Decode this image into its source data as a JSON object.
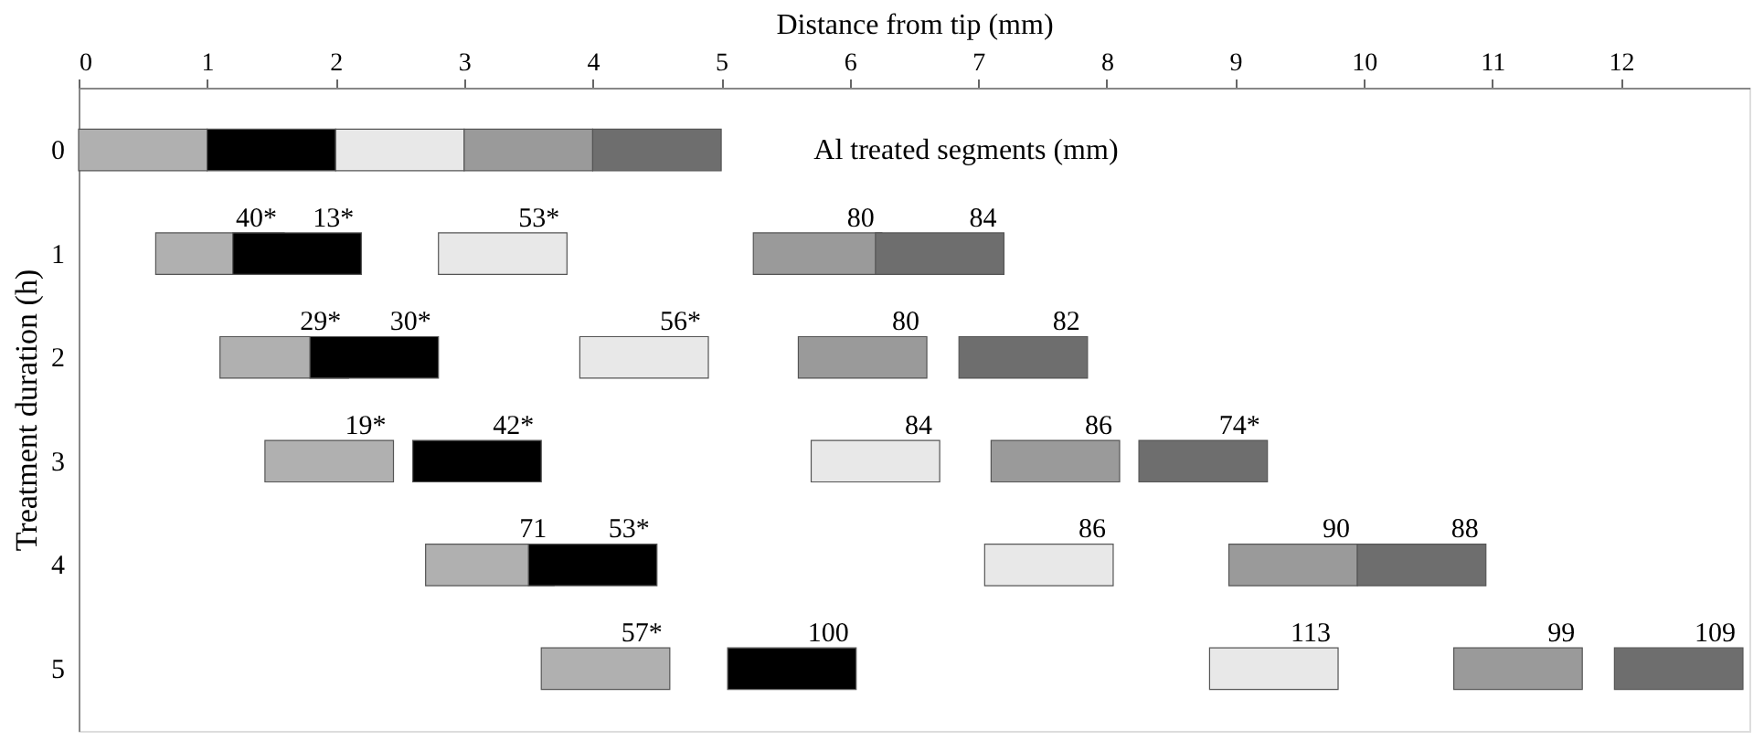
{
  "chart_data": {
    "type": "bar",
    "orientation": "horizontal",
    "xlabel": "Distance from tip (mm)",
    "ylabel": "Treatment duration (h)",
    "categories": [
      "0",
      "1",
      "2",
      "3",
      "4",
      "5"
    ],
    "xlim": [
      0,
      13
    ],
    "xticks": [
      0,
      1,
      2,
      3,
      4,
      5,
      6,
      7,
      8,
      9,
      10,
      11,
      12
    ],
    "series": [
      {
        "color": "#b0b0b0",
        "base": [
          0,
          0.6,
          1.1,
          1.45,
          2.7,
          3.6
        ],
        "values": [
          1,
          1,
          1,
          1,
          1,
          1
        ]
      },
      {
        "color": "#000000",
        "base": [
          1,
          1.2,
          1.8,
          2.6,
          3.5,
          5.05
        ],
        "values": [
          1,
          1,
          1,
          1,
          1,
          1
        ]
      },
      {
        "color": "#e8e8e8",
        "base": [
          2,
          2.8,
          3.9,
          5.7,
          7.05,
          8.8
        ],
        "values": [
          1,
          1,
          1,
          1,
          1,
          1
        ]
      },
      {
        "color": "#9a9a9a",
        "base": [
          3,
          5.25,
          5.6,
          7.1,
          8.95,
          10.7
        ],
        "values": [
          1,
          1,
          1,
          1,
          1,
          1
        ]
      },
      {
        "color": "#6e6e6e",
        "base": [
          4,
          6.2,
          6.85,
          8.25,
          9.95,
          11.95
        ],
        "values": [
          1,
          1,
          1,
          1,
          1,
          1
        ]
      }
    ],
    "annotations": [
      "Al treated segments (mm)",
      {
        "text": "40*",
        "x": 1.6,
        "y": "1"
      },
      {
        "text": "13*",
        "x": 2.2,
        "y": "1"
      },
      {
        "text": "53*",
        "x": 3.8,
        "y": "1"
      },
      {
        "text": "80",
        "x": 6.25,
        "y": "1"
      },
      {
        "text": "84",
        "x": 7.2,
        "y": "1"
      },
      {
        "text": "29*",
        "x": 2.1,
        "y": "2"
      },
      {
        "text": "30*",
        "x": 2.8,
        "y": "2"
      },
      {
        "text": "56*",
        "x": 4.9,
        "y": "2"
      },
      {
        "text": "80",
        "x": 6.6,
        "y": "2"
      },
      {
        "text": "82",
        "x": 7.85,
        "y": "2"
      },
      {
        "text": "19*",
        "x": 2.45,
        "y": "3"
      },
      {
        "text": "42*",
        "x": 3.6,
        "y": "3"
      },
      {
        "text": "84",
        "x": 6.7,
        "y": "3"
      },
      {
        "text": "86",
        "x": 8.1,
        "y": "3"
      },
      {
        "text": "74*",
        "x": 9.25,
        "y": "3"
      },
      {
        "text": "71",
        "x": 3.7,
        "y": "4"
      },
      {
        "text": "53*",
        "x": 4.5,
        "y": "4"
      },
      {
        "text": "86",
        "x": 8.05,
        "y": "4"
      },
      {
        "text": "90",
        "x": 9.95,
        "y": "4"
      },
      {
        "text": "88",
        "x": 10.95,
        "y": "4"
      },
      {
        "text": "57*",
        "x": 4.6,
        "y": "5"
      },
      {
        "text": "100",
        "x": 6.05,
        "y": "5"
      },
      {
        "text": "113",
        "x": 9.8,
        "y": "5"
      },
      {
        "text": "99",
        "x": 11.7,
        "y": "5"
      },
      {
        "text": "109",
        "x": 12.95,
        "y": "5"
      }
    ]
  }
}
